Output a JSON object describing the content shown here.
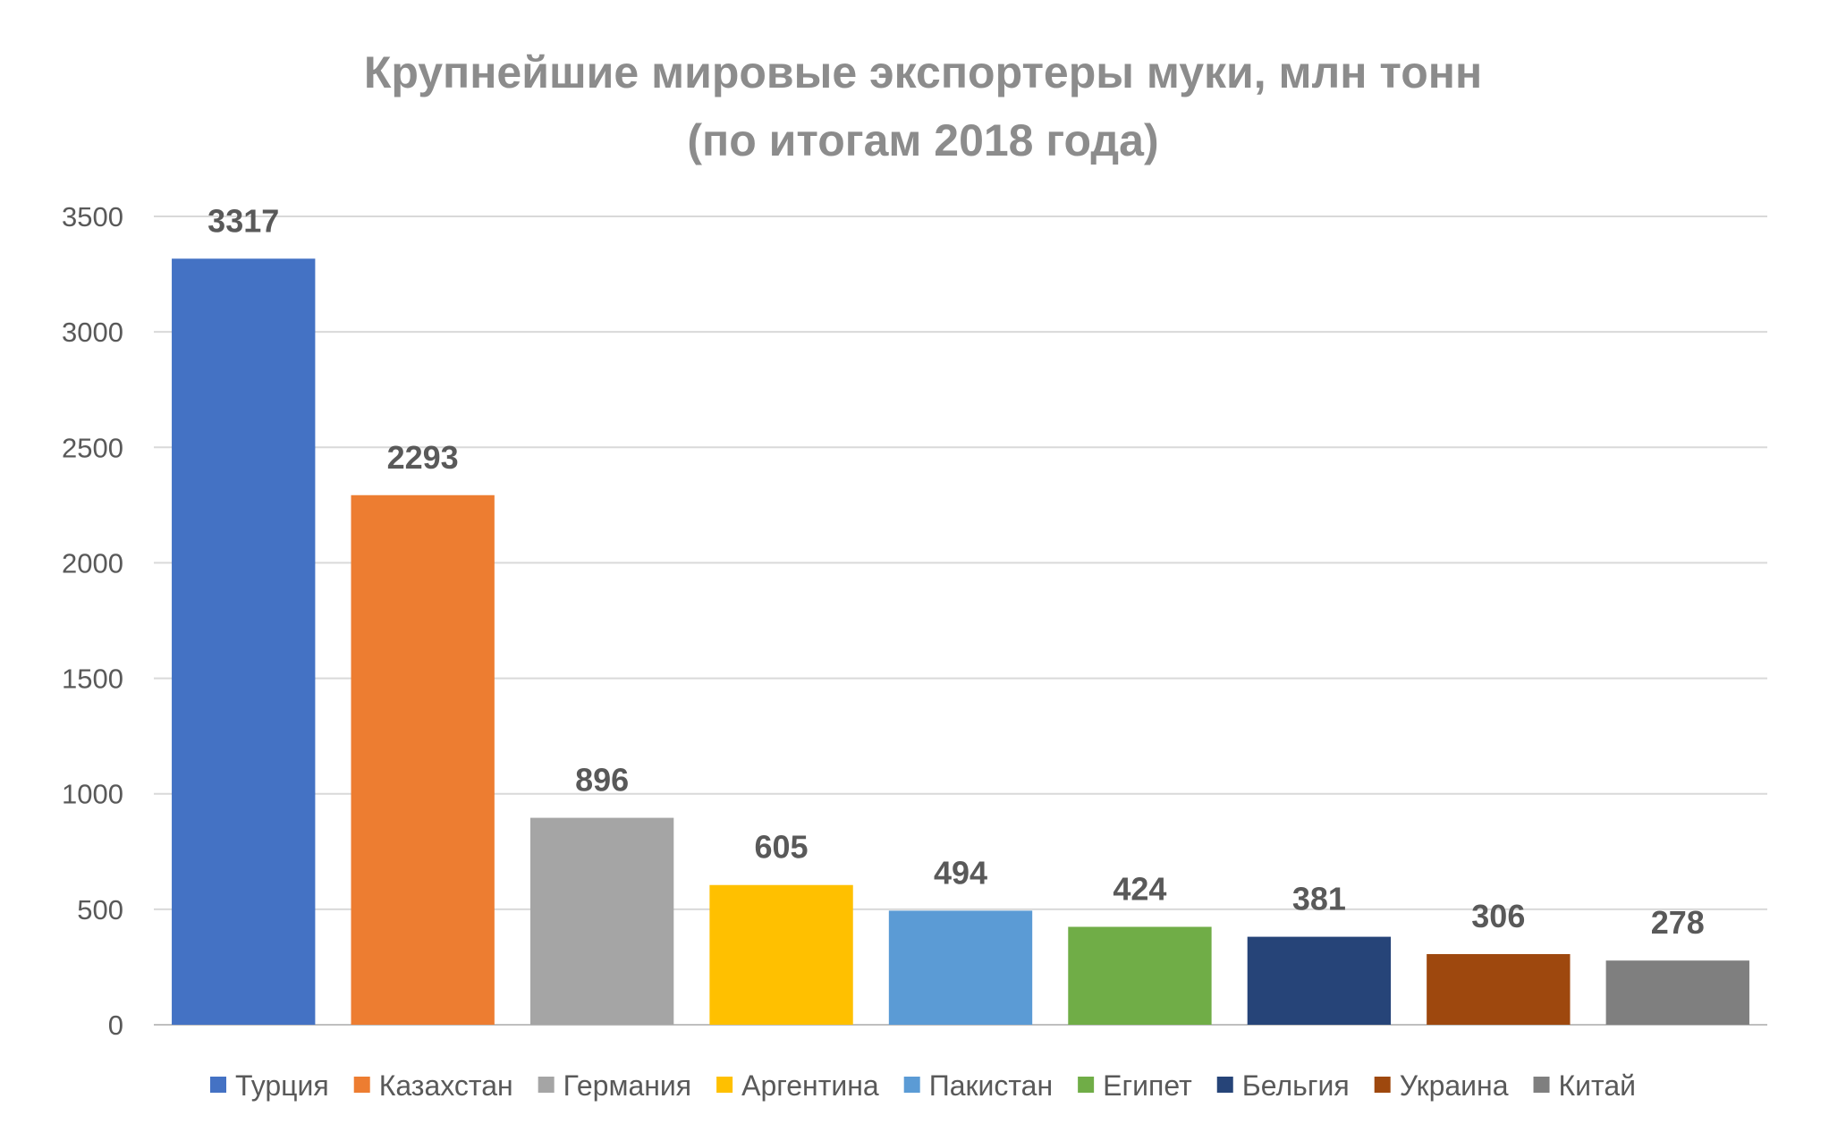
{
  "chart_data": {
    "type": "bar",
    "title_lines": [
      "Крупнейшие мировые экспортеры муки, млн тонн",
      "(по итогам 2018 года)"
    ],
    "categories": [
      "Турция",
      "Казахстан",
      "Германия",
      "Аргентина",
      "Пакистан",
      "Египет",
      "Бельгия",
      "Украина",
      "Китай"
    ],
    "values": [
      3317,
      2293,
      896,
      605,
      494,
      424,
      381,
      306,
      278
    ],
    "data_labels": [
      "3317",
      "2293",
      "896",
      "605",
      "494",
      "424",
      "381",
      "306",
      "278"
    ],
    "colors": [
      "#4472C4",
      "#ED7D31",
      "#A5A5A5",
      "#FFC000",
      "#5B9BD5",
      "#70AD47",
      "#264478",
      "#9E480E",
      "#7F7F7F"
    ],
    "ylim": [
      0,
      3500
    ],
    "yticks": [
      0,
      500,
      1000,
      1500,
      2000,
      2500,
      3000,
      3500
    ],
    "ytick_labels": [
      "0",
      "500",
      "1000",
      "1500",
      "2000",
      "2500",
      "3000",
      "3500"
    ],
    "grid": true,
    "legend": "bottom",
    "xlabel": "",
    "ylabel": ""
  }
}
